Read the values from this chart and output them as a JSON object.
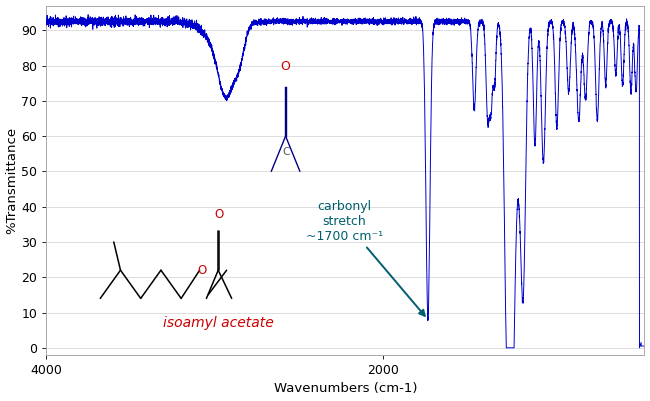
{
  "xlabel": "Wavenumbers (cm-1)",
  "ylabel": "%Transmittance",
  "xlim": [
    4000,
    450
  ],
  "ylim": [
    -2,
    97
  ],
  "yticks": [
    0,
    10,
    20,
    30,
    40,
    50,
    60,
    70,
    80,
    90
  ],
  "xticks": [
    4000,
    2000
  ],
  "line_color": "#0000cc",
  "background_color": "#ffffff",
  "label_color_red": "#cc0000",
  "label_text_isoamyl": "isoamyl",
  "label_text_acetate": " acetate",
  "carbonyl_text": "carbonyl\nstretch\n~1700 cm⁻¹",
  "arrow_color": "#005f6e"
}
